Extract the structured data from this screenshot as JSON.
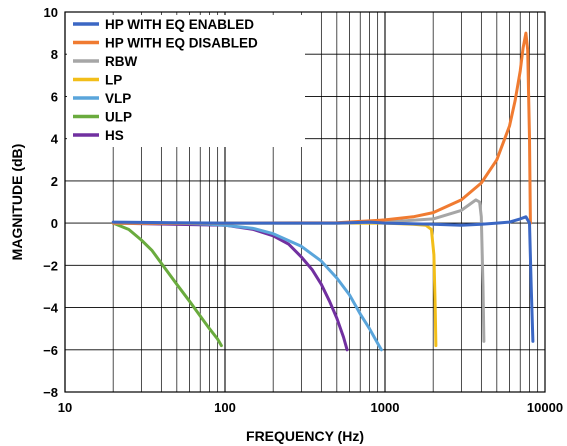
{
  "chart_data": {
    "type": "line",
    "title": "",
    "xlabel": "FREQUENCY (Hz)",
    "ylabel": "MAGNITUDE (dB)",
    "xscale": "log",
    "xlim": [
      10,
      10000
    ],
    "ylim": [
      -8,
      10
    ],
    "x_ticks": [
      10,
      100,
      1000,
      10000
    ],
    "x_tick_labels": [
      "10",
      "100",
      "1000",
      "10000"
    ],
    "y_ticks": [
      -8,
      -6,
      -4,
      -2,
      0,
      2,
      4,
      6,
      8,
      10
    ],
    "y_tick_labels": [
      "−8",
      "−6",
      "−4",
      "−2",
      "0",
      "2",
      "4",
      "6",
      "8",
      "10"
    ],
    "grid": true,
    "legend_position": "top-left",
    "series": [
      {
        "name": "HP WITH EQ ENABLED",
        "color": "#3b67c4",
        "x": [
          20,
          50,
          100,
          200,
          500,
          800,
          1000,
          2000,
          3000,
          4000,
          5000,
          6000,
          7000,
          7600,
          8000,
          8200,
          8400
        ],
        "y": [
          0.05,
          0.02,
          0.0,
          0.0,
          0.0,
          0.05,
          0.0,
          -0.05,
          -0.1,
          -0.05,
          0.0,
          0.05,
          0.2,
          0.3,
          0.0,
          -3.0,
          -5.6
        ]
      },
      {
        "name": "HP WITH EQ DISABLED",
        "color": "#f07b31",
        "x": [
          20,
          100,
          500,
          1000,
          1500,
          2000,
          3000,
          4000,
          5000,
          6000,
          6500,
          7000,
          7300,
          7600,
          7800,
          8000,
          8100
        ],
        "y": [
          0.0,
          0.0,
          0.02,
          0.15,
          0.3,
          0.5,
          1.1,
          1.9,
          3.0,
          4.6,
          5.8,
          7.2,
          8.3,
          9.0,
          8.2,
          4.0,
          0.0
        ]
      },
      {
        "name": "RBW",
        "color": "#a6a6a6",
        "x": [
          20,
          100,
          500,
          1000,
          2000,
          3000,
          3400,
          3700,
          3900,
          4000,
          4100,
          4150
        ],
        "y": [
          0.0,
          0.0,
          0.0,
          0.05,
          0.2,
          0.6,
          0.9,
          1.1,
          1.0,
          0.3,
          -3.0,
          -5.6
        ]
      },
      {
        "name": "LP",
        "color": "#f2be19",
        "x": [
          20,
          100,
          500,
          1000,
          1500,
          1800,
          1950,
          2020,
          2060,
          2080
        ],
        "y": [
          0.0,
          0.0,
          0.0,
          0.0,
          -0.05,
          -0.1,
          -0.3,
          -1.5,
          -4.0,
          -5.8
        ]
      },
      {
        "name": "VLP",
        "color": "#5aa5db",
        "x": [
          20,
          50,
          80,
          100,
          150,
          200,
          300,
          400,
          500,
          600,
          700,
          800,
          900,
          950
        ],
        "y": [
          0.0,
          0.0,
          -0.05,
          -0.1,
          -0.25,
          -0.5,
          -1.1,
          -1.8,
          -2.6,
          -3.4,
          -4.3,
          -5.0,
          -5.7,
          -6.0
        ]
      },
      {
        "name": "ULP",
        "color": "#6aab3e",
        "x": [
          20,
          25,
          30,
          35,
          40,
          50,
          60,
          70,
          80,
          90,
          95
        ],
        "y": [
          0.0,
          -0.3,
          -0.8,
          -1.3,
          -1.9,
          -2.9,
          -3.7,
          -4.4,
          -5.0,
          -5.5,
          -5.8
        ]
      },
      {
        "name": "HS",
        "color": "#7130a0",
        "x": [
          20,
          100,
          150,
          200,
          250,
          300,
          350,
          400,
          450,
          500,
          550,
          580
        ],
        "y": [
          0.0,
          -0.1,
          -0.3,
          -0.6,
          -1.0,
          -1.6,
          -2.2,
          -2.9,
          -3.7,
          -4.5,
          -5.4,
          -6.0
        ]
      }
    ]
  }
}
